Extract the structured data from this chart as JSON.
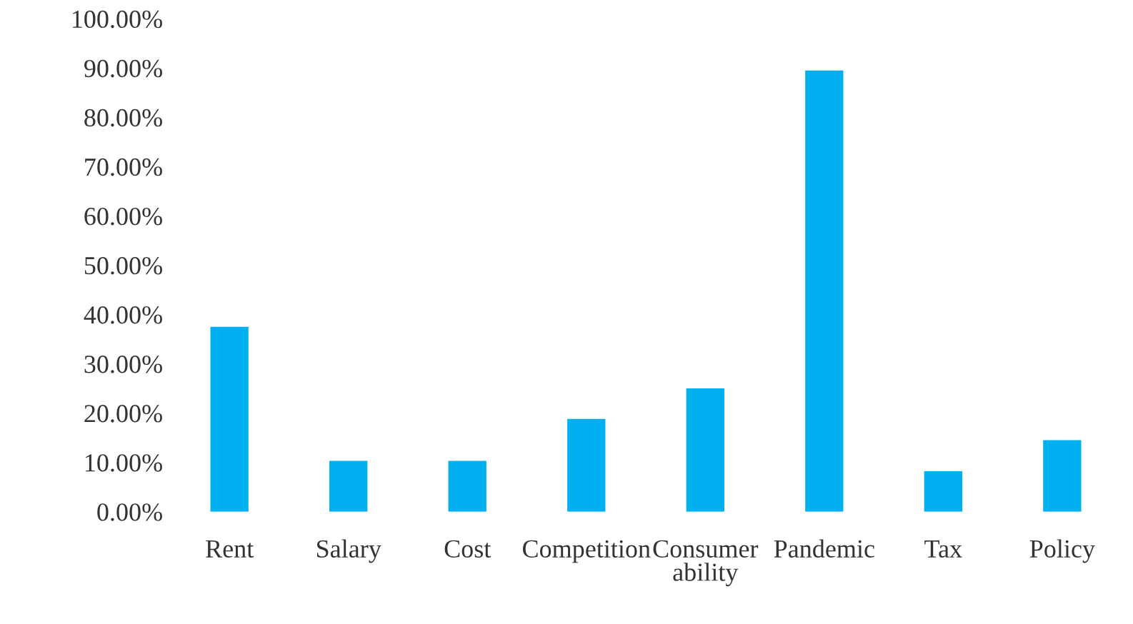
{
  "chart_data": {
    "type": "bar",
    "categories": [
      "Rent",
      "Salary",
      "Cost",
      "Competition",
      "Consumer ability",
      "Pandemic",
      "Tax",
      "Policy"
    ],
    "values": [
      37.5,
      10.3,
      10.3,
      18.8,
      25.0,
      89.5,
      8.2,
      14.5
    ],
    "color": "#00b0f0",
    "ylim": [
      0,
      100
    ],
    "yticks": [
      {
        "value": 0,
        "label": "0.00%"
      },
      {
        "value": 10,
        "label": "10.00%"
      },
      {
        "value": 20,
        "label": "20.00%"
      },
      {
        "value": 30,
        "label": "30.00%"
      },
      {
        "value": 40,
        "label": "40.00%"
      },
      {
        "value": 50,
        "label": "50.00%"
      },
      {
        "value": 60,
        "label": "60.00%"
      },
      {
        "value": 70,
        "label": "70.00%"
      },
      {
        "value": 80,
        "label": "80.00%"
      },
      {
        "value": 90,
        "label": "90.00%"
      },
      {
        "value": 100,
        "label": "100.00%"
      }
    ],
    "grid": false
  }
}
